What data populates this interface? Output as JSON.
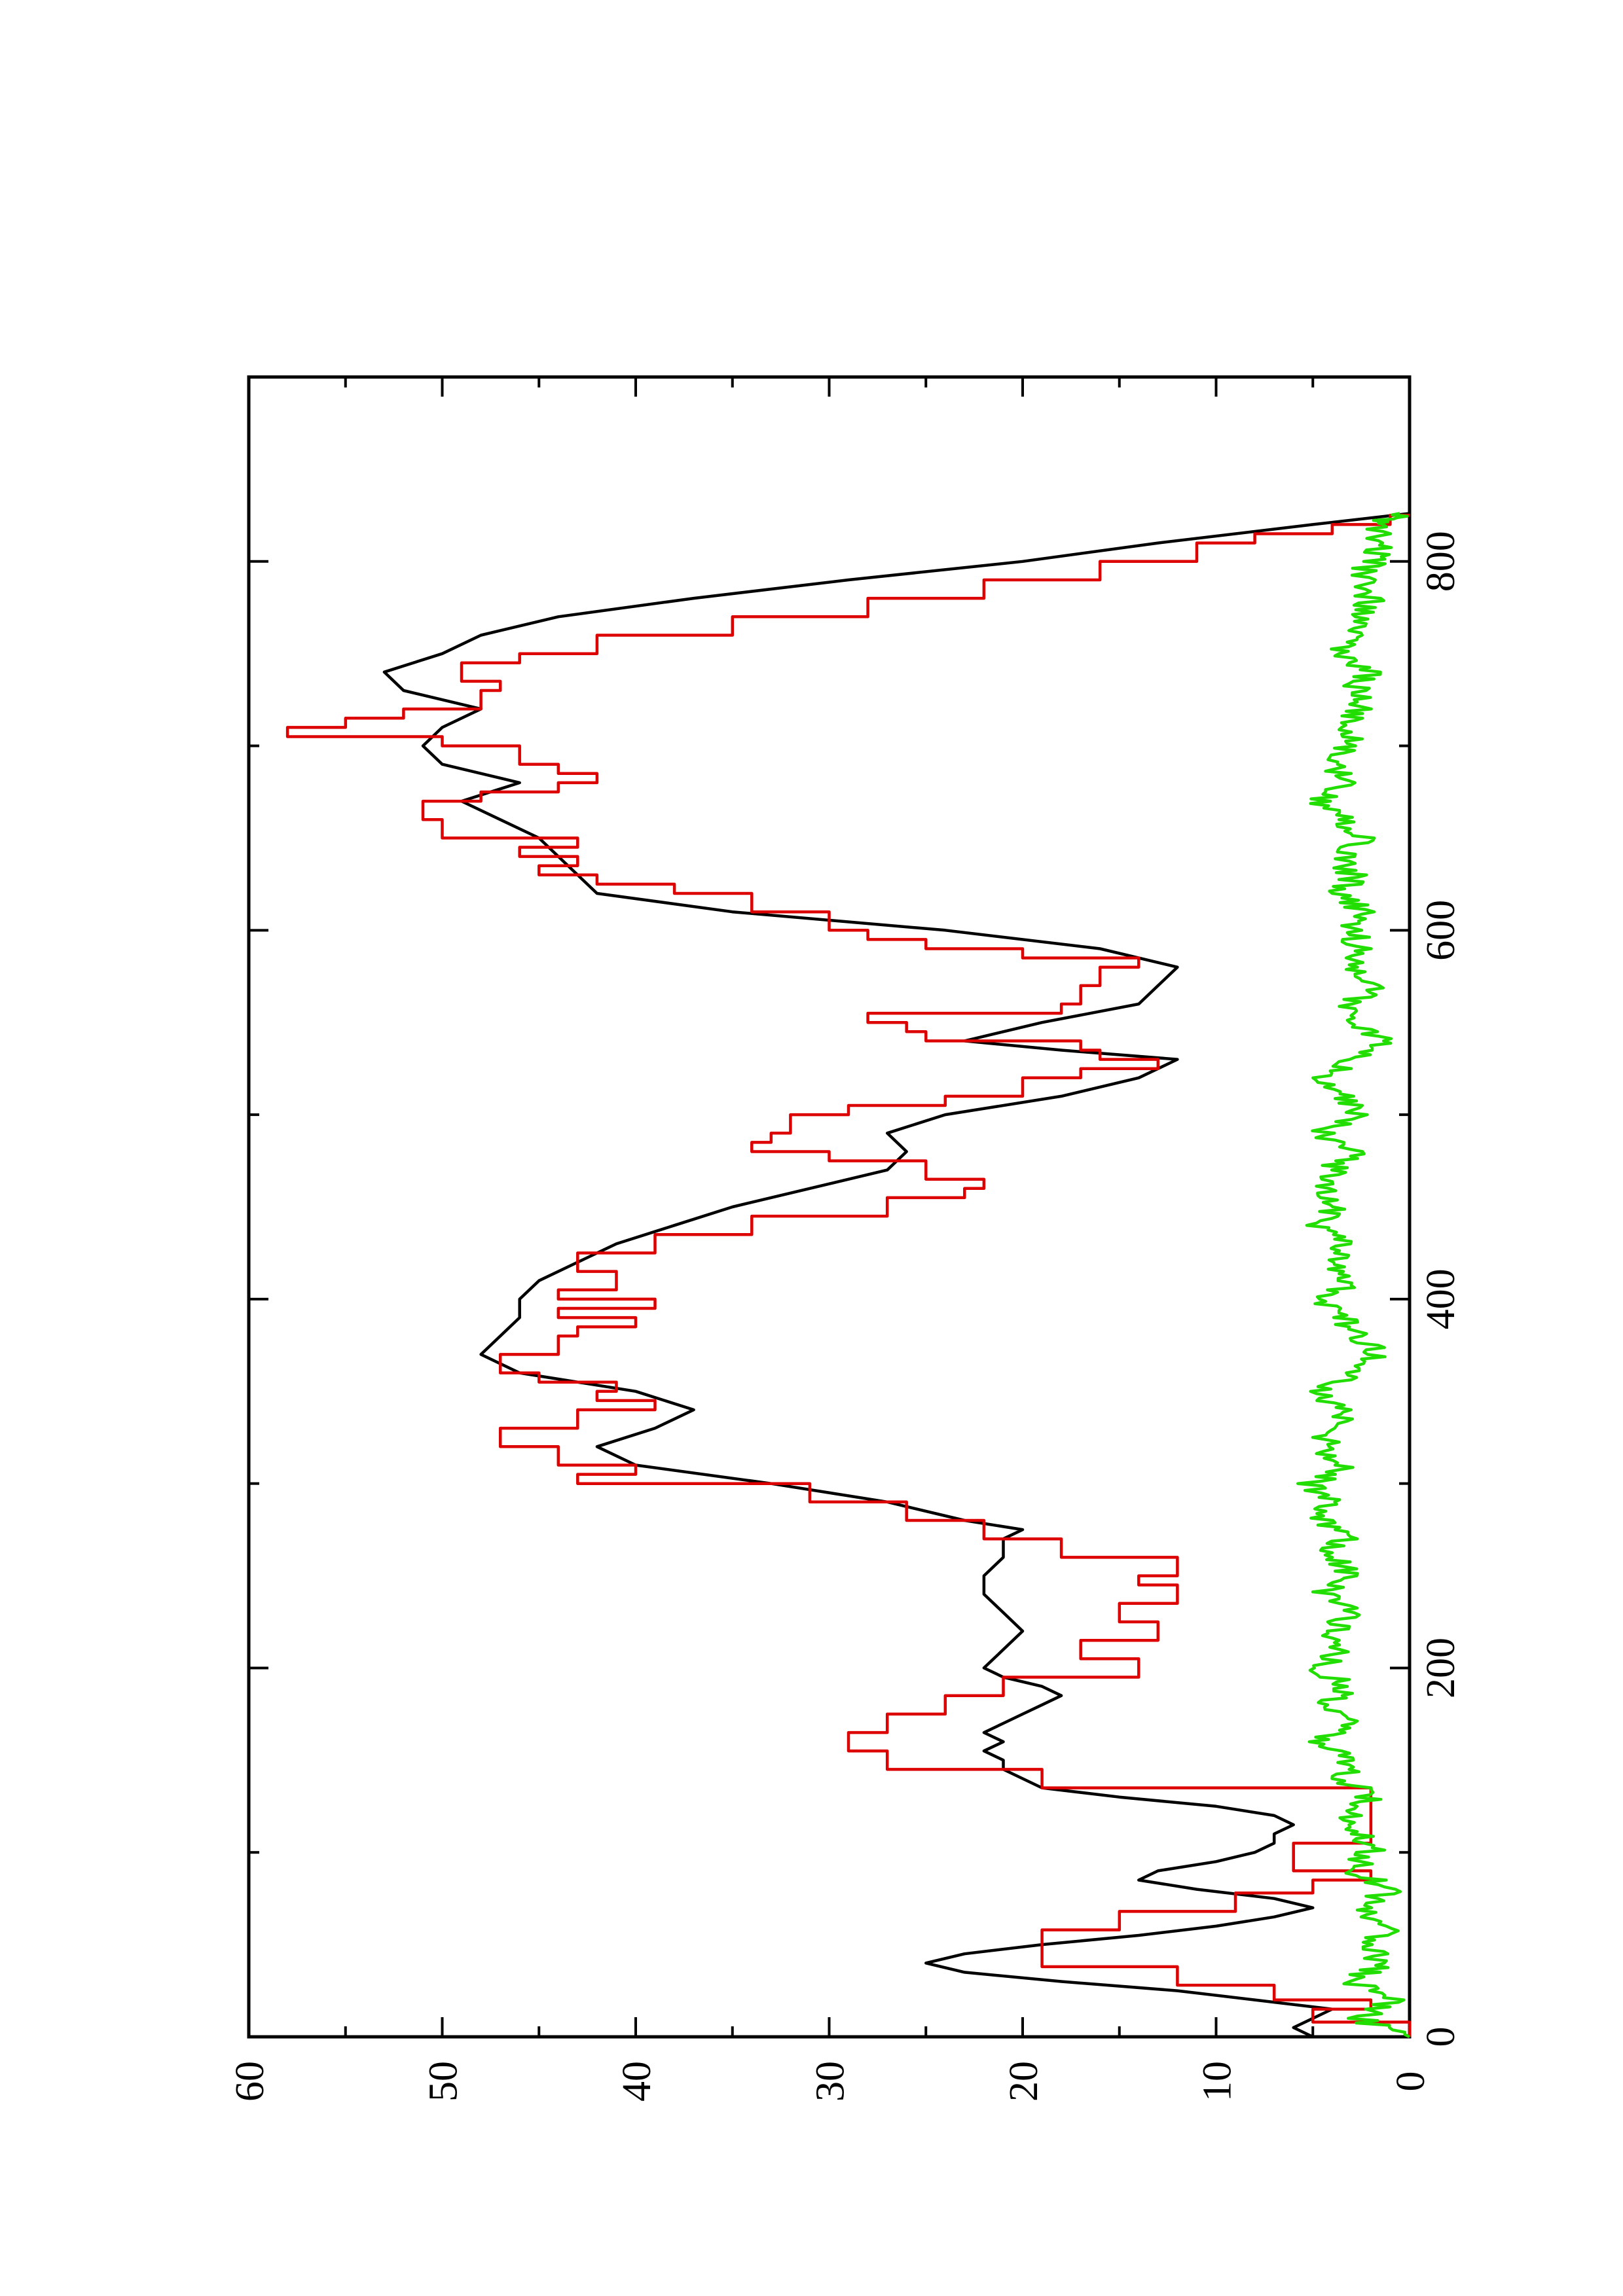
{
  "chart_data": {
    "type": "line",
    "title": "",
    "xlabel": "",
    "ylabel": "",
    "xlim": [
      0,
      900
    ],
    "ylim": [
      0,
      60
    ],
    "x_ticks": [
      0,
      200,
      400,
      600,
      800
    ],
    "y_ticks": [
      0,
      10,
      20,
      30,
      40,
      50,
      60
    ],
    "x_minor_ticks": [
      100,
      300,
      500,
      700
    ],
    "y_minor_ticks": [
      5,
      15,
      25,
      35,
      45,
      55
    ],
    "orientation": "rotated 90 degrees counter-clockwise",
    "grid": false,
    "legend": "none",
    "series": [
      {
        "color": "#000000",
        "style": "smooth",
        "x": [
          0,
          5,
          10,
          15,
          20,
          25,
          30,
          35,
          40,
          45,
          50,
          55,
          60,
          65,
          70,
          75,
          80,
          85,
          90,
          95,
          100,
          105,
          110,
          115,
          120,
          125,
          130,
          135,
          140,
          145,
          150,
          155,
          160,
          165,
          170,
          175,
          180,
          185,
          190,
          195,
          200,
          210,
          220,
          230,
          240,
          250,
          260,
          270,
          275,
          280,
          290,
          300,
          310,
          320,
          330,
          340,
          350,
          360,
          370,
          380,
          390,
          400,
          410,
          420,
          430,
          440,
          450,
          460,
          470,
          480,
          490,
          500,
          510,
          520,
          530,
          535,
          540,
          550,
          560,
          570,
          580,
          590,
          600,
          610,
          620,
          630,
          640,
          650,
          660,
          670,
          680,
          690,
          700,
          710,
          720,
          730,
          740,
          750,
          760,
          770,
          780,
          790,
          800,
          810,
          820,
          826
        ],
        "y": [
          5,
          6,
          5,
          4,
          8,
          12,
          18,
          23,
          25,
          23,
          19,
          14,
          10,
          7,
          5,
          7,
          11,
          14,
          13,
          10,
          8,
          7,
          7,
          6,
          7,
          10,
          15,
          19,
          20,
          21,
          21,
          22,
          21,
          22,
          21,
          20,
          19,
          18,
          19,
          21,
          22,
          21,
          20,
          21,
          22,
          22,
          21,
          21,
          20,
          23,
          27,
          33,
          40,
          42,
          39,
          37,
          40,
          46,
          48,
          47,
          46,
          46,
          45,
          43,
          41,
          38,
          35,
          31,
          27,
          26,
          27,
          24,
          18,
          14,
          12,
          18,
          23,
          19,
          14,
          13,
          12,
          16,
          24,
          35,
          42,
          43,
          44,
          45,
          47,
          49,
          46,
          50,
          51,
          50,
          48,
          52,
          53,
          50,
          48,
          44,
          37,
          29,
          20,
          13,
          5,
          0
        ]
      },
      {
        "color": "#dd0000",
        "style": "step",
        "x": [
          0,
          8,
          15,
          20,
          28,
          38,
          48,
          58,
          68,
          78,
          85,
          90,
          95,
          105,
          115,
          120,
          125,
          135,
          145,
          155,
          165,
          175,
          185,
          195,
          205,
          215,
          225,
          235,
          245,
          250,
          260,
          270,
          280,
          290,
          300,
          305,
          310,
          320,
          330,
          340,
          345,
          350,
          355,
          360,
          365,
          370,
          380,
          385,
          390,
          395,
          400,
          405,
          410,
          415,
          425,
          435,
          445,
          455,
          460,
          465,
          475,
          480,
          485,
          490,
          500,
          505,
          510,
          520,
          525,
          530,
          535,
          540,
          545,
          550,
          555,
          560,
          570,
          580,
          585,
          590,
          595,
          600,
          610,
          620,
          625,
          630,
          635,
          640,
          645,
          650,
          660,
          670,
          675,
          680,
          685,
          690,
          700,
          705,
          710,
          715,
          720,
          725,
          730,
          735,
          740,
          745,
          750,
          760,
          770,
          780,
          790,
          800,
          810,
          815,
          820,
          825
        ],
        "y": [
          0,
          5,
          2,
          7,
          12,
          19,
          19,
          15,
          9,
          5,
          2,
          6,
          6,
          2,
          2,
          2,
          2,
          19,
          27,
          29,
          27,
          24,
          21,
          14,
          17,
          13,
          15,
          12,
          14,
          12,
          18,
          22,
          26,
          31,
          43,
          40,
          44,
          47,
          43,
          39,
          42,
          41,
          45,
          47,
          47,
          44,
          43,
          40,
          44,
          39,
          44,
          41,
          41,
          43,
          39,
          34,
          27,
          23,
          22,
          25,
          30,
          34,
          33,
          32,
          29,
          24,
          20,
          17,
          13,
          16,
          17,
          25,
          26,
          28,
          18,
          17,
          16,
          14,
          20,
          25,
          28,
          30,
          34,
          38,
          42,
          45,
          43,
          46,
          43,
          50,
          51,
          48,
          44,
          42,
          44,
          46,
          50,
          58,
          55,
          52,
          48,
          48,
          47,
          49,
          49,
          46,
          42,
          35,
          28,
          22,
          16,
          11,
          8,
          4,
          1,
          0
        ]
      },
      {
        "color": "#22dd00",
        "style": "noisy",
        "x": [
          0,
          10,
          20,
          30,
          40,
          50,
          60,
          70,
          80,
          90,
          100,
          110,
          120,
          130,
          140,
          150,
          160,
          170,
          180,
          190,
          200,
          210,
          220,
          230,
          240,
          250,
          260,
          270,
          280,
          290,
          300,
          310,
          320,
          330,
          340,
          350,
          360,
          370,
          380,
          390,
          400,
          410,
          420,
          430,
          440,
          450,
          460,
          470,
          480,
          490,
          500,
          510,
          520,
          530,
          540,
          550,
          560,
          570,
          580,
          590,
          600,
          610,
          620,
          630,
          640,
          650,
          660,
          670,
          680,
          690,
          700,
          710,
          720,
          730,
          740,
          750,
          760,
          770,
          780,
          790,
          800,
          810,
          820,
          826
        ],
        "y": [
          0.5,
          2.5,
          1.0,
          3.0,
          1.5,
          2.0,
          1.0,
          2.5,
          1.0,
          3.0,
          2.0,
          2.5,
          3.0,
          2.0,
          3.5,
          3.0,
          4.5,
          3.0,
          4.0,
          3.5,
          4.5,
          3.5,
          4.0,
          3.0,
          4.5,
          3.0,
          4.0,
          3.5,
          4.5,
          4.0,
          5.0,
          3.5,
          4.5,
          4.0,
          3.5,
          5.0,
          2.5,
          1.5,
          2.5,
          3.5,
          4.5,
          3.0,
          4.0,
          3.5,
          5.0,
          3.5,
          4.5,
          4.0,
          3.0,
          4.5,
          2.5,
          3.5,
          4.5,
          3.0,
          1.5,
          2.5,
          3.0,
          2.0,
          3.0,
          2.5,
          3.0,
          2.5,
          3.5,
          3.0,
          3.5,
          2.5,
          3.5,
          4.5,
          3.0,
          4.0,
          3.0,
          3.5,
          2.5,
          3.0,
          2.0,
          3.5,
          3.0,
          2.5,
          2.0,
          2.5,
          2.0,
          1.5,
          2.0,
          0.5
        ]
      }
    ]
  }
}
